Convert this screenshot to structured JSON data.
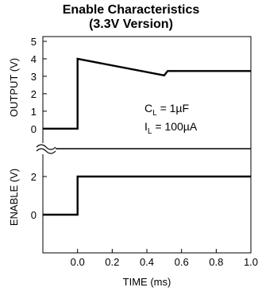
{
  "chart_data": {
    "type": "line",
    "title": "Enable Characteristics",
    "subtitle": "(3.3V Version)",
    "xlabel": "TIME (ms)",
    "xlim": [
      -0.2,
      1.0
    ],
    "x_ticks": [
      "0.0",
      "0.2",
      "0.4",
      "0.6",
      "0.8",
      "1.0"
    ],
    "x_tick_values": [
      0.0,
      0.2,
      0.4,
      0.6,
      0.8,
      1.0
    ],
    "grid": false,
    "panels": [
      {
        "name": "output",
        "ylabel": "OUTPUT (V)",
        "ylim": [
          -0.6,
          5
        ],
        "y_ticks": [
          "5",
          "4",
          "3",
          "2",
          "1",
          "0"
        ],
        "y_tick_values": [
          5,
          4,
          3,
          2,
          1,
          0
        ],
        "series": [
          {
            "x": [
              -0.2,
              0.0,
              0.0,
              0.5,
              0.52,
              1.0
            ],
            "y": [
              0,
              0,
              4.0,
              3.05,
              3.3,
              3.3
            ]
          }
        ]
      },
      {
        "name": "enable",
        "ylabel": "ENABLE (V)",
        "ylim": [
          -2.0,
          3.0
        ],
        "y_ticks": [
          "2",
          "0"
        ],
        "y_tick_values": [
          2,
          0
        ],
        "series": [
          {
            "x": [
              -0.2,
              0.0,
              0.0,
              1.0
            ],
            "y": [
              0,
              0,
              2,
              2
            ]
          }
        ]
      }
    ],
    "annotations": {
      "cl_main": "C",
      "cl_sub": "L",
      "cl_value": " = 1µF",
      "il_main": "I",
      "il_sub": "L",
      "il_value": " = 100µA"
    }
  }
}
